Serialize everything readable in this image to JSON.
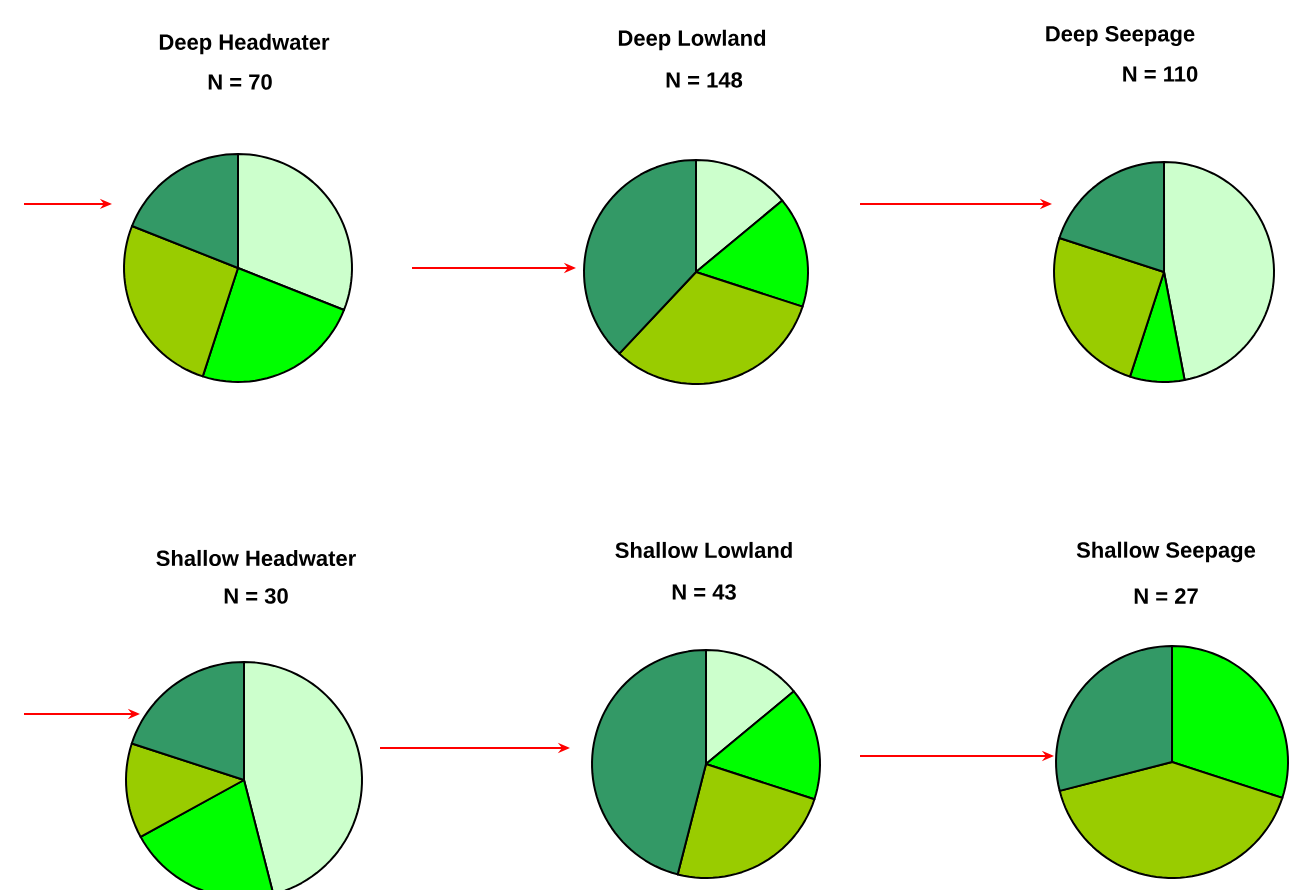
{
  "chart_data": [
    {
      "type": "pie",
      "title": "Deep Headwater",
      "subtitle": "N = 70",
      "categories": [
        null,
        null,
        null,
        null
      ],
      "values": [
        31,
        24,
        26,
        19
      ],
      "colors": [
        "#ccffcc",
        "#00ff00",
        "#99cc00",
        "#339966"
      ]
    },
    {
      "type": "pie",
      "title": "Deep Lowland",
      "subtitle": "N = 148",
      "categories": [
        null,
        null,
        null,
        null
      ],
      "values": [
        14,
        16,
        32,
        38
      ],
      "colors": [
        "#ccffcc",
        "#00ff00",
        "#99cc00",
        "#339966"
      ]
    },
    {
      "type": "pie",
      "title": "Deep Seepage",
      "subtitle": "N = 110",
      "categories": [
        null,
        null,
        null,
        null
      ],
      "values": [
        47,
        8,
        25,
        20
      ],
      "colors": [
        "#ccffcc",
        "#00ff00",
        "#99cc00",
        "#339966"
      ]
    },
    {
      "type": "pie",
      "title": "Shallow Headwater",
      "subtitle": "N = 30",
      "categories": [
        null,
        null,
        null,
        null
      ],
      "values": [
        46,
        21,
        13,
        20
      ],
      "colors": [
        "#ccffcc",
        "#00ff00",
        "#99cc00",
        "#339966"
      ]
    },
    {
      "type": "pie",
      "title": "Shallow Lowland",
      "subtitle": "N = 43",
      "categories": [
        null,
        null,
        null,
        null
      ],
      "values": [
        14,
        16,
        24,
        46
      ],
      "colors": [
        "#ccffcc",
        "#00ff00",
        "#99cc00",
        "#339966"
      ]
    },
    {
      "type": "pie",
      "title": "Shallow Seepage",
      "subtitle": "N = 27",
      "categories": [
        null,
        null,
        null
      ],
      "values": [
        30,
        41,
        29
      ],
      "colors": [
        "#00ff00",
        "#99cc00",
        "#339966"
      ]
    }
  ]
}
